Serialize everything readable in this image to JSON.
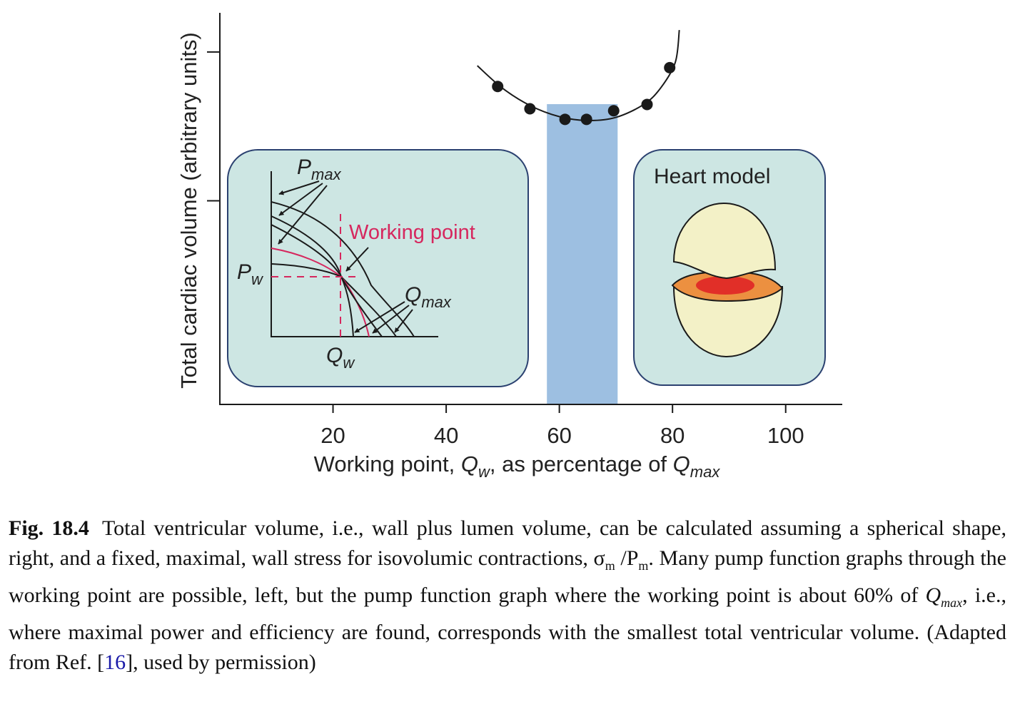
{
  "chart_data": {
    "type": "scatter",
    "title": "",
    "xlabel": {
      "prefix": "Working point, ",
      "qw": "Q",
      "qw_sub": "w",
      "middle": ", as percentage of ",
      "qmax": "Q",
      "qmax_sub": "max"
    },
    "ylabel": "Total cardiac volume (arbitrary units)",
    "xlim": [
      0,
      110
    ],
    "ylim": [
      0,
      1
    ],
    "x_ticks": [
      20,
      40,
      60,
      80,
      100
    ],
    "y_ticks_unlabeled": [
      0.52,
      0.9
    ],
    "grid": false,
    "series": [
      {
        "points": [
          {
            "x": 49.1,
            "y": 0.812
          },
          {
            "x": 54.8,
            "y": 0.755
          },
          {
            "x": 61.0,
            "y": 0.728
          },
          {
            "x": 64.8,
            "y": 0.728
          },
          {
            "x": 69.6,
            "y": 0.75
          },
          {
            "x": 75.5,
            "y": 0.766
          },
          {
            "x": 79.5,
            "y": 0.86
          }
        ],
        "fit_curve": [
          {
            "x": 45.5,
            "y": 0.865
          },
          {
            "x": 50,
            "y": 0.807
          },
          {
            "x": 55,
            "y": 0.762
          },
          {
            "x": 60,
            "y": 0.735
          },
          {
            "x": 65,
            "y": 0.725
          },
          {
            "x": 70,
            "y": 0.733
          },
          {
            "x": 75,
            "y": 0.767
          },
          {
            "x": 78,
            "y": 0.81
          },
          {
            "x": 80.5,
            "y": 0.874
          },
          {
            "x": 81.2,
            "y": 0.956
          }
        ]
      }
    ],
    "highlight_band": {
      "x_from": 57.8,
      "x_to": 70.3,
      "color": "#9dbfe1"
    },
    "colors": {
      "panel_fill": "#cde6e3",
      "panel_stroke": "#2b4170",
      "working_point": "#d6275e",
      "curve": "#1a1a1a"
    }
  },
  "inset_pump": {
    "pmax": {
      "base": "P",
      "sub": "max"
    },
    "working_point_label": "Working point",
    "pw": {
      "base": "P",
      "sub": "w"
    },
    "qmax": {
      "base": "Q",
      "sub": "max"
    },
    "qw": {
      "base": "Q",
      "sub": "w"
    }
  },
  "inset_heart": {
    "label": "Heart model",
    "colors": {
      "shell": "#f3f1c7",
      "wall": "#ec9040",
      "lumen": "#e12f28"
    }
  },
  "caption": {
    "label": "Fig. 18.4",
    "text_1": "Total ventricular volume, i.e., wall plus lumen volume, can be calculated assuming a spherical shape, right, and a fixed, maximal, wall stress for isovolumic contractions, σ",
    "sigma_sub": "m",
    "text_2": " /P",
    "p_sub": "m",
    "text_3": ". Many pump function graphs through the working point are possible, left, but the pump function graph where the working point is about 60% of ",
    "qmax_base": "Q",
    "qmax_sub": "max",
    "text_4": ", i.e., where maximal power and efficiency are found, corresponds with the smallest total ventricular volume. (Adapted from Ref. [",
    "ref": "16",
    "text_5": "], used by permission)"
  }
}
